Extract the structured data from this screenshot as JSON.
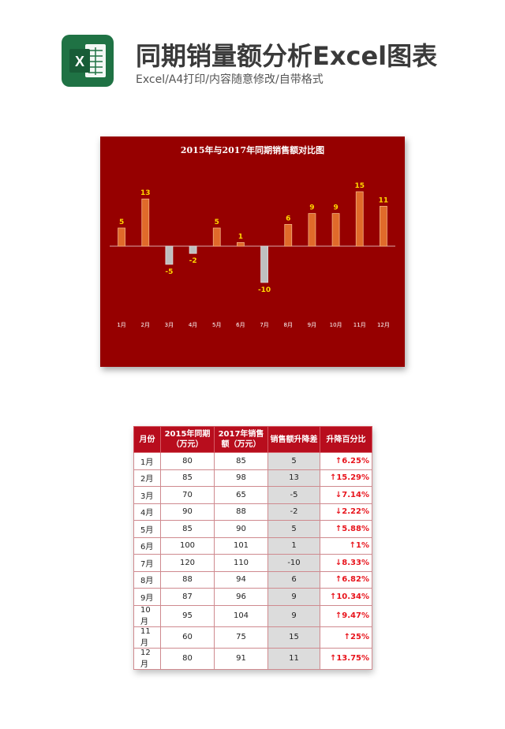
{
  "header": {
    "title": "同期销量额分析Excel图表",
    "subtitle": "Excel/A4打印/内容随意修改/自带格式",
    "logo_letter": "X"
  },
  "colors": {
    "chart_bg": "#960000",
    "positive_bar": "#e06a2a",
    "negative_bar": "#bfbfbf",
    "value_label": "#ffd700",
    "table_header": "#b80d1d",
    "percent_text": "#e8141c"
  },
  "chart_data": {
    "type": "bar",
    "title": "2015年与2017年同期销售额对比图",
    "categories": [
      "1月",
      "2月",
      "3月",
      "4月",
      "5月",
      "6月",
      "7月",
      "8月",
      "9月",
      "10月",
      "11月",
      "12月"
    ],
    "values": [
      5,
      13,
      -5,
      -2,
      5,
      1,
      -10,
      6,
      9,
      9,
      15,
      11
    ],
    "ylim": [
      -10,
      15
    ],
    "grid": false,
    "legend": "none"
  },
  "table": {
    "headers": [
      "月份",
      "2015年同期（万元）",
      "2017年销售额（万元）",
      "销售额升降差",
      "升降百分比"
    ],
    "rows": [
      {
        "month": "1月",
        "y2015": "80",
        "y2017": "85",
        "diff": "5",
        "pct": "↑6.25%"
      },
      {
        "month": "2月",
        "y2015": "85",
        "y2017": "98",
        "diff": "13",
        "pct": "↑15.29%"
      },
      {
        "month": "3月",
        "y2015": "70",
        "y2017": "65",
        "diff": "-5",
        "pct": "↓7.14%"
      },
      {
        "month": "4月",
        "y2015": "90",
        "y2017": "88",
        "diff": "-2",
        "pct": "↓2.22%"
      },
      {
        "month": "5月",
        "y2015": "85",
        "y2017": "90",
        "diff": "5",
        "pct": "↑5.88%"
      },
      {
        "month": "6月",
        "y2015": "100",
        "y2017": "101",
        "diff": "1",
        "pct": "↑1%"
      },
      {
        "month": "7月",
        "y2015": "120",
        "y2017": "110",
        "diff": "-10",
        "pct": "↓8.33%"
      },
      {
        "month": "8月",
        "y2015": "88",
        "y2017": "94",
        "diff": "6",
        "pct": "↑6.82%"
      },
      {
        "month": "9月",
        "y2015": "87",
        "y2017": "96",
        "diff": "9",
        "pct": "↑10.34%"
      },
      {
        "month": "10月",
        "y2015": "95",
        "y2017": "104",
        "diff": "9",
        "pct": "↑9.47%"
      },
      {
        "month": "11月",
        "y2015": "60",
        "y2017": "75",
        "diff": "15",
        "pct": "↑25%"
      },
      {
        "month": "12月",
        "y2015": "80",
        "y2017": "91",
        "diff": "11",
        "pct": "↑13.75%"
      }
    ]
  }
}
